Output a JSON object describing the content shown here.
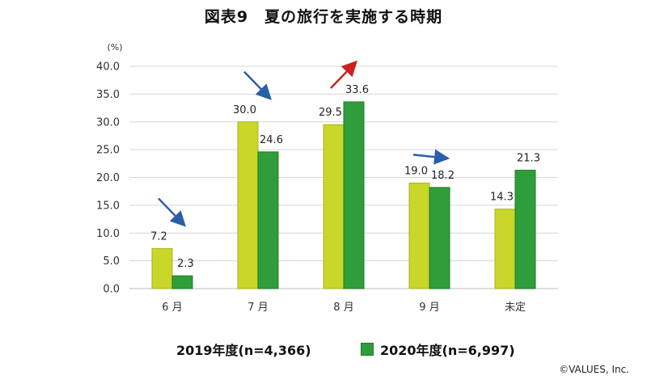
{
  "header": {
    "title": "図表9　夏の旅行を実施する時期"
  },
  "chart_data": {
    "type": "bar",
    "title": "図表9　夏の旅行を実施する時期",
    "ylabel": "(%)",
    "xlabel": "",
    "ylim": [
      0,
      40
    ],
    "yticks": [
      "0.0",
      "5.0",
      "10.0",
      "15.0",
      "20.0",
      "25.0",
      "30.0",
      "35.0",
      "40.0"
    ],
    "categories": [
      "6 月",
      "7 月",
      "8 月",
      "9 月",
      "未定"
    ],
    "series": [
      {
        "name": "2019年度(n=4,366)",
        "values": [
          7.2,
          30.0,
          29.5,
          19.0,
          14.3
        ],
        "labels": [
          "7.2",
          "30.0",
          "29.5",
          "19.0",
          "14.3"
        ],
        "color": "#c8d72a"
      },
      {
        "name": "2020年度(n=6,997)",
        "values": [
          2.3,
          24.6,
          33.6,
          18.2,
          21.3
        ],
        "labels": [
          "2.3",
          "24.6",
          "33.6",
          "18.2",
          "21.3"
        ],
        "color": "#2f9e3a"
      }
    ],
    "grid": true,
    "legend_position": "bottom",
    "trend_arrows": [
      {
        "category": "6 月",
        "direction": "down",
        "color": "#2a5ea8"
      },
      {
        "category": "7 月",
        "direction": "down",
        "color": "#2a5ea8"
      },
      {
        "category": "8 月",
        "direction": "up",
        "color": "#cc1f1f"
      },
      {
        "category": "9 月",
        "direction": "flat",
        "color": "#2a5ea8"
      }
    ]
  },
  "legend": {
    "series_2019": "2019年度(n=4,366)",
    "series_2020": "2020年度(n=6,997)"
  },
  "footer": {
    "copyright": "©VALUES, Inc."
  }
}
